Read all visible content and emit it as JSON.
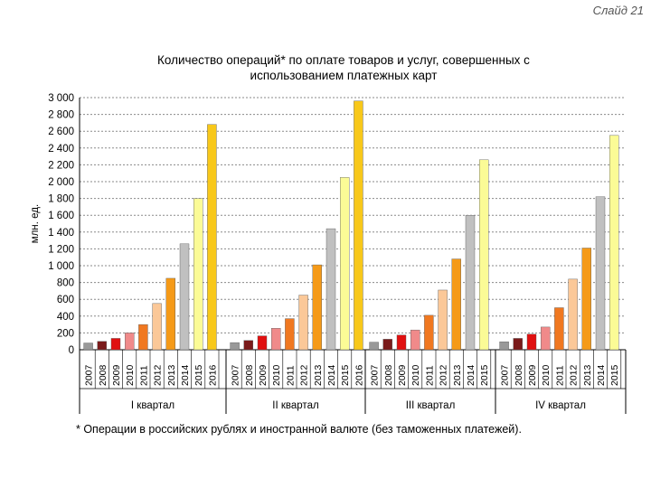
{
  "slide_label": "Слайд 21",
  "footnote": "* Операции в российских рублях и иностранной валюте (без таможенных платежей).",
  "chart_data": {
    "type": "bar",
    "title_line1": "Количество операций* по оплате товаров и услуг, совершенных с",
    "title_line2": "использованием платежных карт",
    "ylabel": "млн. ед.",
    "ylim": [
      0,
      3000
    ],
    "yticks": [
      "0",
      "200",
      "400",
      "600",
      "800",
      "1 000",
      "1 200",
      "1 400",
      "1 600",
      "1 800",
      "2 000",
      "2 200",
      "2 400",
      "2 600",
      "2 800",
      "3 000"
    ],
    "grid": true,
    "year_colors": {
      "2007": "#999999",
      "2008": "#7a1a1a",
      "2009": "#e01010",
      "2010": "#f08a8a",
      "2011": "#f07820",
      "2012": "#fbc898",
      "2013": "#f59a18",
      "2014": "#c0c0c0",
      "2015": "#fbfb96",
      "2016": "#f8c81a"
    },
    "groups": [
      {
        "label": "I квартал",
        "years": [
          "2007",
          "2008",
          "2009",
          "2010",
          "2011",
          "2012",
          "2013",
          "2014",
          "2015",
          "2016"
        ],
        "values": [
          80,
          100,
          135,
          200,
          300,
          550,
          850,
          1260,
          1800,
          2680
        ]
      },
      {
        "label": "II квартал",
        "years": [
          "2007",
          "2008",
          "2009",
          "2010",
          "2011",
          "2012",
          "2013",
          "2014",
          "2015",
          "2016"
        ],
        "values": [
          85,
          110,
          165,
          255,
          370,
          650,
          1010,
          1440,
          2050,
          2960
        ]
      },
      {
        "label": "III квартал",
        "years": [
          "2007",
          "2008",
          "2009",
          "2010",
          "2011",
          "2012",
          "2013",
          "2014",
          "2015"
        ],
        "values": [
          90,
          125,
          175,
          235,
          410,
          710,
          1080,
          1600,
          2260
        ]
      },
      {
        "label": "IV квартал",
        "years": [
          "2007",
          "2008",
          "2009",
          "2010",
          "2011",
          "2012",
          "2013",
          "2014",
          "2015"
        ],
        "values": [
          95,
          135,
          185,
          270,
          500,
          840,
          1210,
          1820,
          2550
        ]
      }
    ]
  }
}
